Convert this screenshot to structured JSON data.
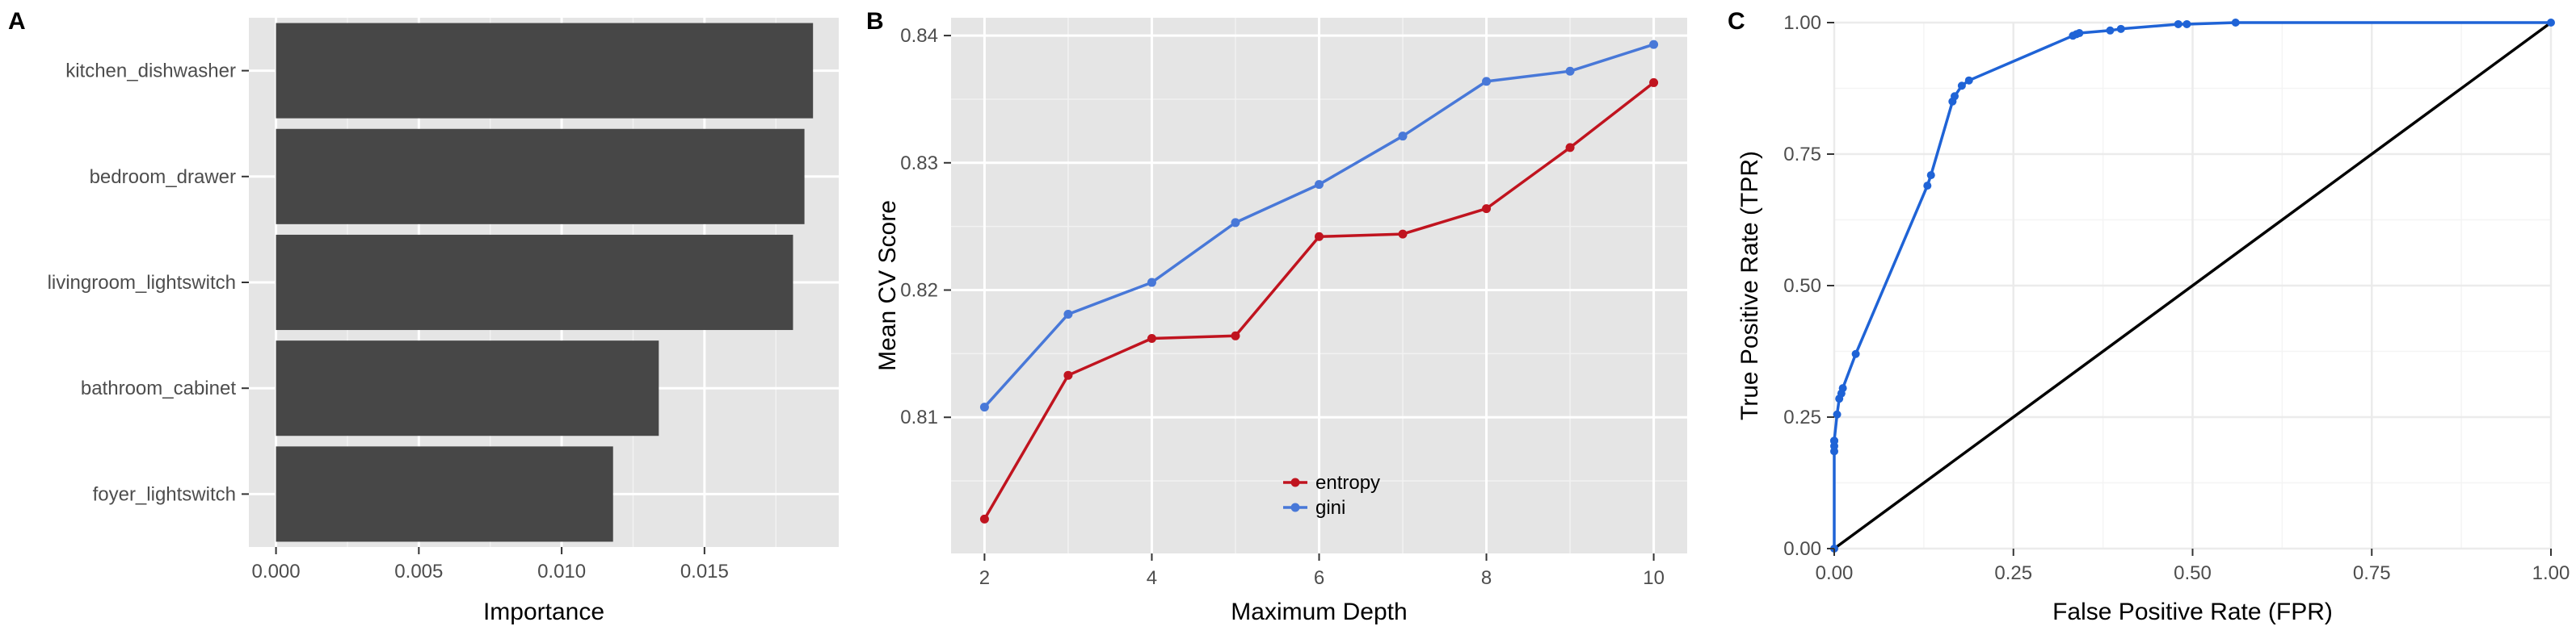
{
  "chart_data": [
    {
      "panel": "A",
      "type": "bar",
      "orientation": "horizontal",
      "categories": [
        "kitchen_dishwasher",
        "bedroom_drawer",
        "livingroom_lightswitch",
        "bathroom_cabinet",
        "foyer_lightswitch"
      ],
      "values": [
        0.0188,
        0.0185,
        0.0181,
        0.0134,
        0.0118
      ],
      "xlabel": "Importance",
      "ylabel": "",
      "xlim": [
        -0.00095,
        0.0197
      ],
      "xticks": [
        0.0,
        0.005,
        0.01,
        0.015
      ],
      "xtick_labels": [
        "0.000",
        "0.005",
        "0.010",
        "0.015"
      ],
      "bar_color": "#474747",
      "panel_background": "#e5e5e5",
      "grid": true
    },
    {
      "panel": "B",
      "type": "line",
      "x": [
        2,
        3,
        4,
        5,
        6,
        7,
        8,
        9,
        10
      ],
      "series": [
        {
          "name": "entropy",
          "color": "#c0141f",
          "values": [
            0.802,
            0.8133,
            0.8162,
            0.8164,
            0.8242,
            0.8244,
            0.8264,
            0.8312,
            0.8363
          ]
        },
        {
          "name": "gini",
          "color": "#4878d8",
          "values": [
            0.8108,
            0.8181,
            0.8206,
            0.8253,
            0.8283,
            0.8321,
            0.8364,
            0.8372,
            0.8393
          ]
        }
      ],
      "xlabel": "Maximum Depth",
      "ylabel": "Mean CV Score",
      "xlim": [
        1.6,
        10.4
      ],
      "ylim": [
        0.7993,
        0.8414
      ],
      "xticks": [
        2,
        4,
        6,
        8,
        10
      ],
      "xtick_labels": [
        "2",
        "4",
        "6",
        "8",
        "10"
      ],
      "yticks": [
        0.81,
        0.82,
        0.83,
        0.84
      ],
      "ytick_labels": [
        "0.81",
        "0.82",
        "0.83",
        "0.84"
      ],
      "legend": "bottom-center",
      "panel_background": "#e5e5e5",
      "grid": true
    },
    {
      "panel": "C",
      "type": "line",
      "series": [
        {
          "name": "",
          "color": "#1f63d6",
          "x": [
            0.0,
            0.0,
            0.0,
            0.0,
            0.0,
            0.004,
            0.007,
            0.01,
            0.012,
            0.03,
            0.13,
            0.135,
            0.165,
            0.168,
            0.178,
            0.188,
            0.333,
            0.338,
            0.342,
            0.385,
            0.4,
            0.48,
            0.492,
            0.56,
            1.0
          ],
          "y": [
            0.0,
            0.185,
            0.195,
            0.205,
            0.205,
            0.255,
            0.285,
            0.295,
            0.305,
            0.37,
            0.69,
            0.71,
            0.85,
            0.86,
            0.88,
            0.89,
            0.975,
            0.978,
            0.98,
            0.985,
            0.988,
            0.997,
            0.997,
            1.0,
            1.0
          ]
        },
        {
          "name": "",
          "color": "#000000",
          "x": [
            0.0,
            1.0
          ],
          "y": [
            0.0,
            1.0
          ],
          "markers": false
        }
      ],
      "xlabel": "False Positive Rate (FPR)",
      "ylabel": "True Positive Rate (TPR)",
      "xlim": [
        0.0,
        1.0
      ],
      "ylim": [
        0.0,
        1.0
      ],
      "xticks": [
        0.0,
        0.25,
        0.5,
        0.75,
        1.0
      ],
      "xtick_labels": [
        "0.00",
        "0.25",
        "0.50",
        "0.75",
        "1.00"
      ],
      "yticks": [
        0.0,
        0.25,
        0.5,
        0.75,
        1.0
      ],
      "ytick_labels": [
        "0.00",
        "0.25",
        "0.50",
        "0.75",
        "1.00"
      ],
      "panel_background": "#ffffff",
      "grid_color": "#ebebeb",
      "grid": true
    }
  ]
}
